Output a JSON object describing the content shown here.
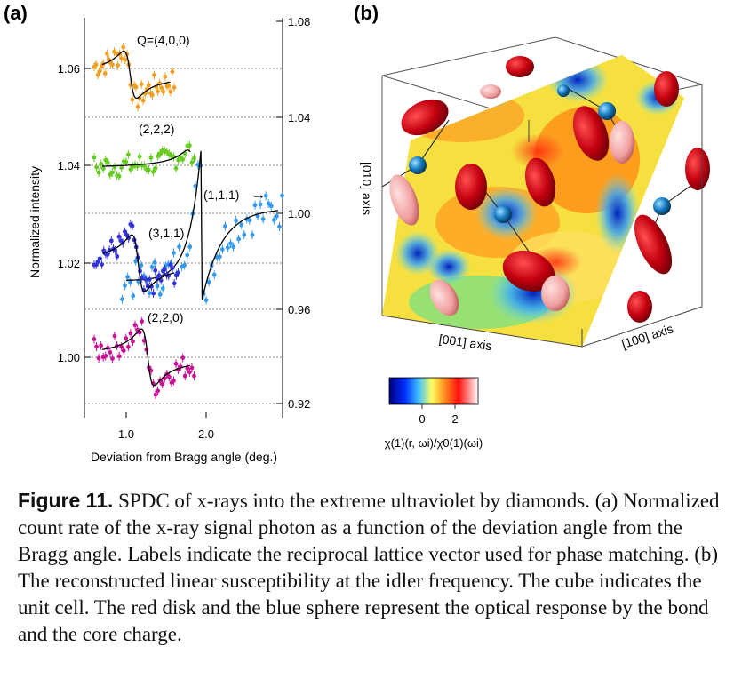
{
  "panel_a": {
    "label": "(a)",
    "xlabel": "Deviation from Bragg angle (deg.)",
    "ylabel": "Normalized intensity",
    "x_ticks": [
      "1.0",
      "2.0"
    ],
    "left_ticks": [
      "1.06",
      "1.04",
      "1.02",
      "1.00"
    ],
    "right_ticks": [
      "1.08",
      "1.04",
      "1.00",
      "0.96",
      "0.92"
    ],
    "series_labels": {
      "s400": "Q=(4,0,0)",
      "s222": "(2,2,2)",
      "s111": "(1,1,1)",
      "s311": "(3,1,1)",
      "s220": "(2,2,0)"
    },
    "arrow": "→"
  },
  "panel_b": {
    "label": "(b)",
    "axis_010": "[010] axis",
    "axis_001": "[001] axis",
    "axis_100": "[100] axis",
    "colorbar_ticks": [
      "0",
      "2"
    ],
    "colorbar_label": "χ(1)(r, ωi)/χ0(1)(ωi)",
    "colors": {
      "low": "#000080",
      "mid": "#ffff40",
      "high": "#ff2020",
      "top": "#ffffff"
    }
  },
  "chart_data": {
    "type": "scatter",
    "title": "",
    "xlabel": "Deviation from Bragg angle (deg.)",
    "ylabel": "Normalized intensity",
    "xlim": [
      0.5,
      2.95
    ],
    "ylim_left": [
      0.99,
      1.07
    ],
    "ylim_right": [
      0.92,
      1.08
    ],
    "series": [
      {
        "name": "Q=(4,0,0)",
        "color": "#f0a020",
        "axis": "left",
        "baseline": 1.06,
        "x0": 1.05,
        "amp": 0.005,
        "x": [
          0.6,
          1.6
        ]
      },
      {
        "name": "(2,2,2)",
        "color": "#66cc22",
        "axis": "left",
        "baseline": 1.04,
        "x0": 1.85,
        "amp": 0.004,
        "x": [
          0.6,
          1.85
        ]
      },
      {
        "name": "(1,1,1)",
        "color": "#3399ee",
        "axis": "right",
        "baseline": 1.0,
        "x0": 1.95,
        "amp": 0.045,
        "x": [
          0.95,
          2.95
        ]
      },
      {
        "name": "(3,1,1)",
        "color": "#3333dd",
        "axis": "left",
        "baseline": 1.02,
        "x0": 1.15,
        "amp": 0.006,
        "x": [
          0.6,
          1.65
        ]
      },
      {
        "name": "(2,2,0)",
        "color": "#cc1199",
        "axis": "left",
        "baseline": 1.0,
        "x0": 1.27,
        "amp": 0.006,
        "x": [
          0.6,
          1.85
        ]
      }
    ]
  },
  "caption": {
    "label": "Figure 11.",
    "text": " SPDC of x-rays into the extreme ultraviolet by diamonds. (a) Normalized count rate of the x-ray signal photon as a function of the deviation angle from the Bragg angle. Labels indicate the reciprocal lattice vector used for phase matching. (b) The reconstructed linear susceptibility at the idler frequency. The cube indicates the unit cell. The red disk and the blue sphere represent the optical response by the bond and the core charge."
  }
}
